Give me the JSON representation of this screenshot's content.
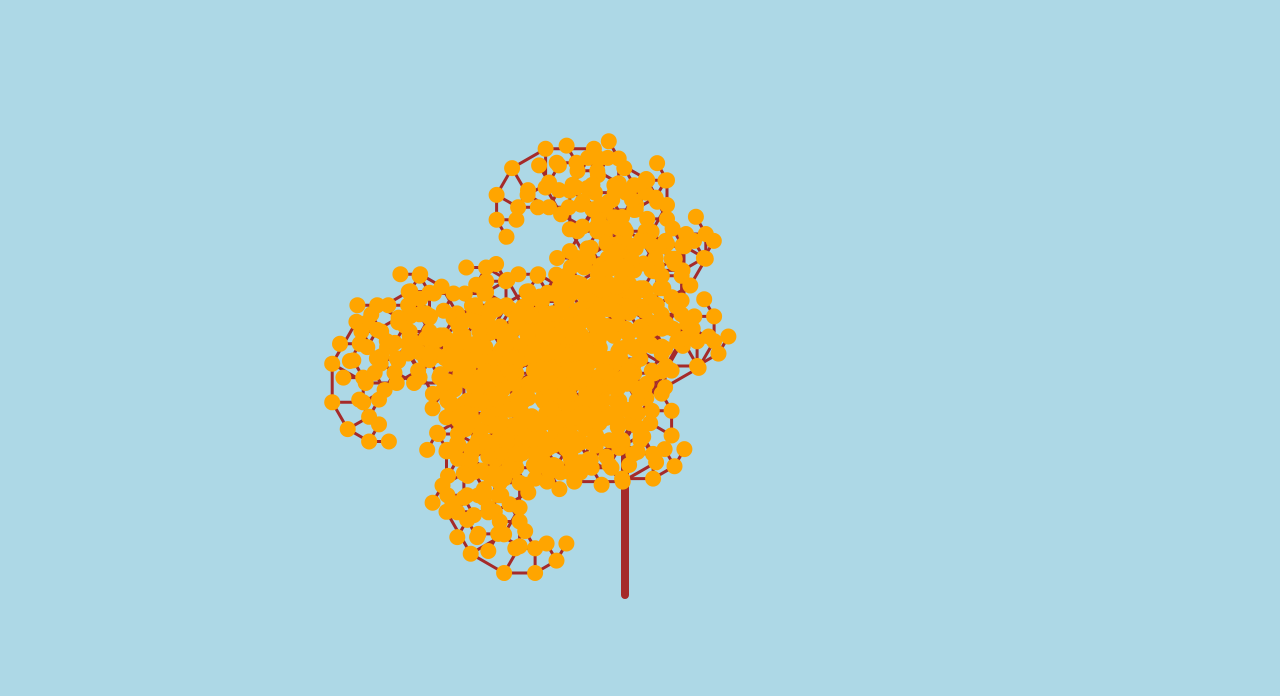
{
  "scene": {
    "subject": "fractal tree",
    "colors": {
      "background": "#add8e6",
      "branch": "#a52a2a",
      "leaf": "#ffa500"
    }
  }
}
